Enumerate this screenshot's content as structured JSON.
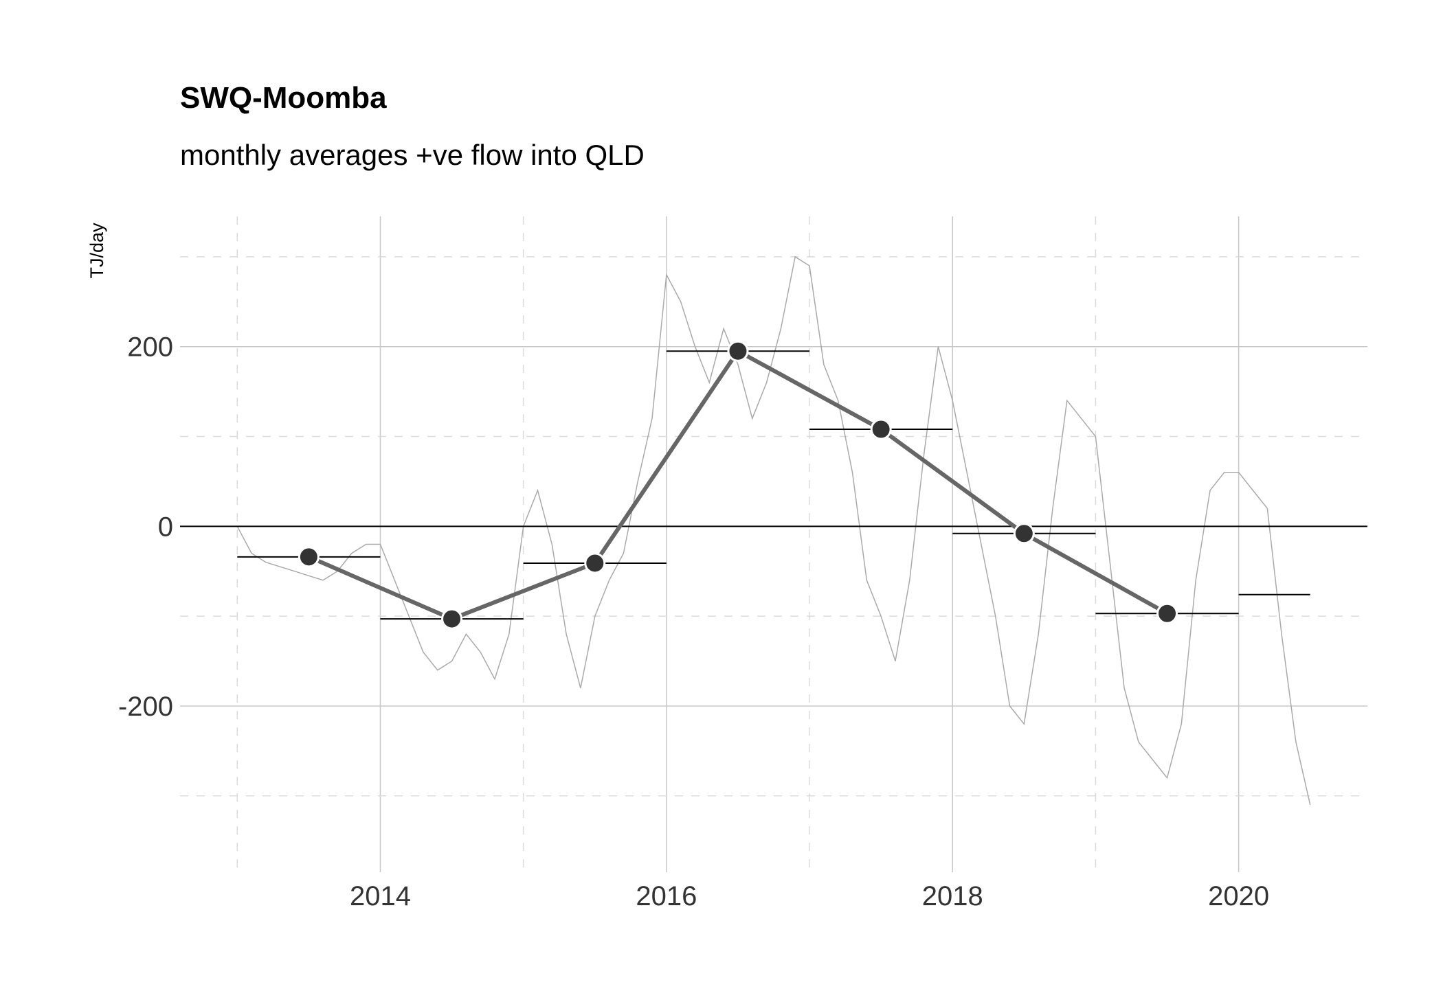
{
  "colors": {
    "daily_series": "#aaaaaa",
    "annual_line": "#666666",
    "annual_points": "#333333",
    "grid_major": "#c8c8c8",
    "grid_minor": "#dcdcdc",
    "zero_line": "#000000",
    "text": "#333333"
  },
  "chart_data": {
    "type": "line",
    "title": "SWQ-Moomba",
    "subtitle": "monthly averages +ve flow into QLD",
    "xlabel": "",
    "ylabel": "TJ/day",
    "xlim": [
      2012.6,
      2020.9
    ],
    "ylim": [
      -385,
      345
    ],
    "x_ticks": [
      2014,
      2016,
      2018,
      2020
    ],
    "x_tick_labels": [
      "2014",
      "2016",
      "2018",
      "2020"
    ],
    "y_ticks": [
      -200,
      0,
      200
    ],
    "y_tick_labels": [
      "-200",
      "0",
      "200"
    ],
    "grid": "major solid, minor dashed",
    "legend": "none",
    "series": [
      {
        "type": "line",
        "x": [
          2013.0,
          2013.1,
          2013.2,
          2013.3,
          2013.4,
          2013.5,
          2013.6,
          2013.7,
          2013.8,
          2013.9,
          2014.0,
          2014.1,
          2014.2,
          2014.3,
          2014.4,
          2014.5,
          2014.6,
          2014.7,
          2014.8,
          2014.9,
          2015.0,
          2015.1,
          2015.2,
          2015.3,
          2015.4,
          2015.5,
          2015.6,
          2015.7,
          2015.8,
          2015.9,
          2016.0,
          2016.1,
          2016.2,
          2016.3,
          2016.4,
          2016.5,
          2016.6,
          2016.7,
          2016.8,
          2016.9,
          2017.0,
          2017.1,
          2017.2,
          2017.3,
          2017.4,
          2017.5,
          2017.6,
          2017.7,
          2017.8,
          2017.9,
          2018.0,
          2018.1,
          2018.2,
          2018.3,
          2018.4,
          2018.5,
          2018.6,
          2018.7,
          2018.8,
          2018.9,
          2019.0,
          2019.1,
          2019.2,
          2019.3,
          2019.4,
          2019.5,
          2019.6,
          2019.7,
          2019.8,
          2019.9,
          2020.0,
          2020.1,
          2020.2,
          2020.3,
          2020.4,
          2020.5
        ],
        "values": [
          0,
          -30,
          -40,
          -45,
          -50,
          -55,
          -60,
          -50,
          -30,
          -20,
          -20,
          -60,
          -100,
          -140,
          -160,
          -150,
          -120,
          -140,
          -170,
          -120,
          0,
          40,
          -20,
          -120,
          -180,
          -100,
          -60,
          -30,
          50,
          120,
          280,
          250,
          200,
          160,
          220,
          180,
          120,
          160,
          220,
          300,
          290,
          180,
          140,
          60,
          -60,
          -100,
          -150,
          -60,
          80,
          200,
          140,
          60,
          -20,
          -100,
          -200,
          -220,
          -120,
          20,
          140,
          120,
          100,
          -40,
          -180,
          -240,
          -260,
          -280,
          -220,
          -60,
          40,
          60,
          60,
          40,
          20,
          -120,
          -240,
          -310
        ]
      },
      {
        "type": "annual_average",
        "x": [
          2013.5,
          2014.5,
          2015.5,
          2016.5,
          2017.5,
          2018.5,
          2019.5,
          2020.25
        ],
        "values": [
          -34,
          -103,
          -41,
          195,
          108,
          -8,
          -97,
          -76
        ],
        "range_start": [
          2013.0,
          2014.0,
          2015.0,
          2016.0,
          2017.0,
          2018.0,
          2019.0,
          2020.0
        ],
        "range_end": [
          2014.0,
          2015.0,
          2016.0,
          2017.0,
          2018.0,
          2019.0,
          2020.0,
          2020.5
        ]
      }
    ]
  }
}
